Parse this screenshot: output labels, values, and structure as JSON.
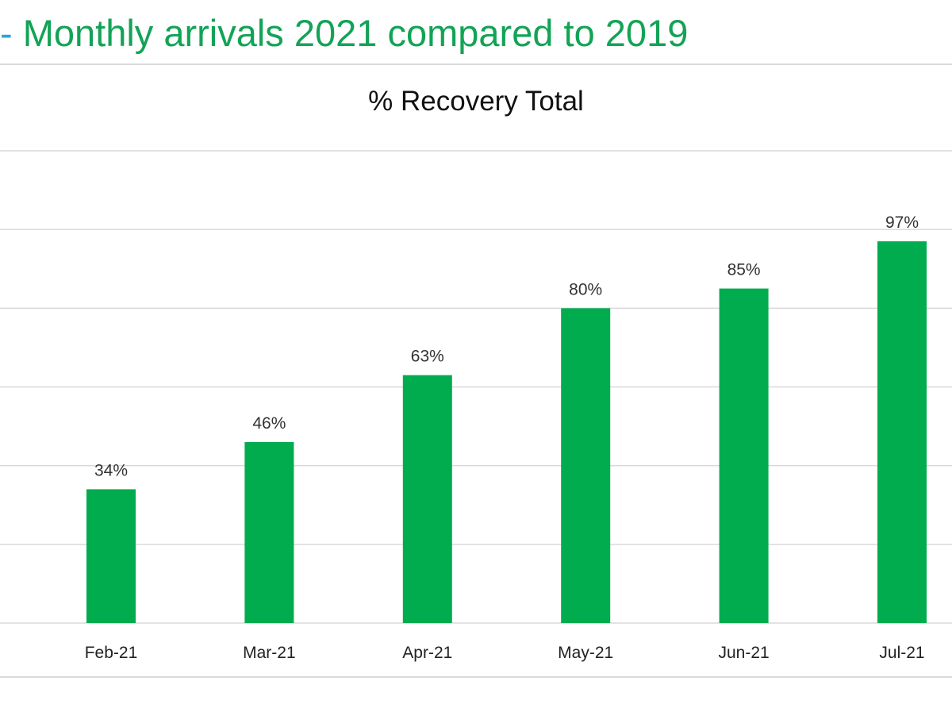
{
  "header": {
    "dash": "-",
    "title": "Monthly arrivals 2021 compared to 2019"
  },
  "colors": {
    "title_green": "#13a356",
    "dash_blue": "#29a7d8",
    "bar_green": "#00ac4e",
    "grid": "#d9d9d9"
  },
  "chart_data": {
    "type": "bar",
    "title": "% Recovery Total",
    "categories": [
      "Feb-21",
      "Mar-21",
      "Apr-21",
      "May-21",
      "Jun-21",
      "Jul-21"
    ],
    "values": [
      34,
      46,
      63,
      80,
      85,
      97
    ],
    "data_labels": [
      "34%",
      "46%",
      "63%",
      "80%",
      "85%",
      "97%"
    ],
    "unit": "%",
    "xlabel": "",
    "ylabel": "",
    "ylim": [
      0,
      120
    ],
    "grid_step": 20,
    "grid": true,
    "legend": "none"
  }
}
